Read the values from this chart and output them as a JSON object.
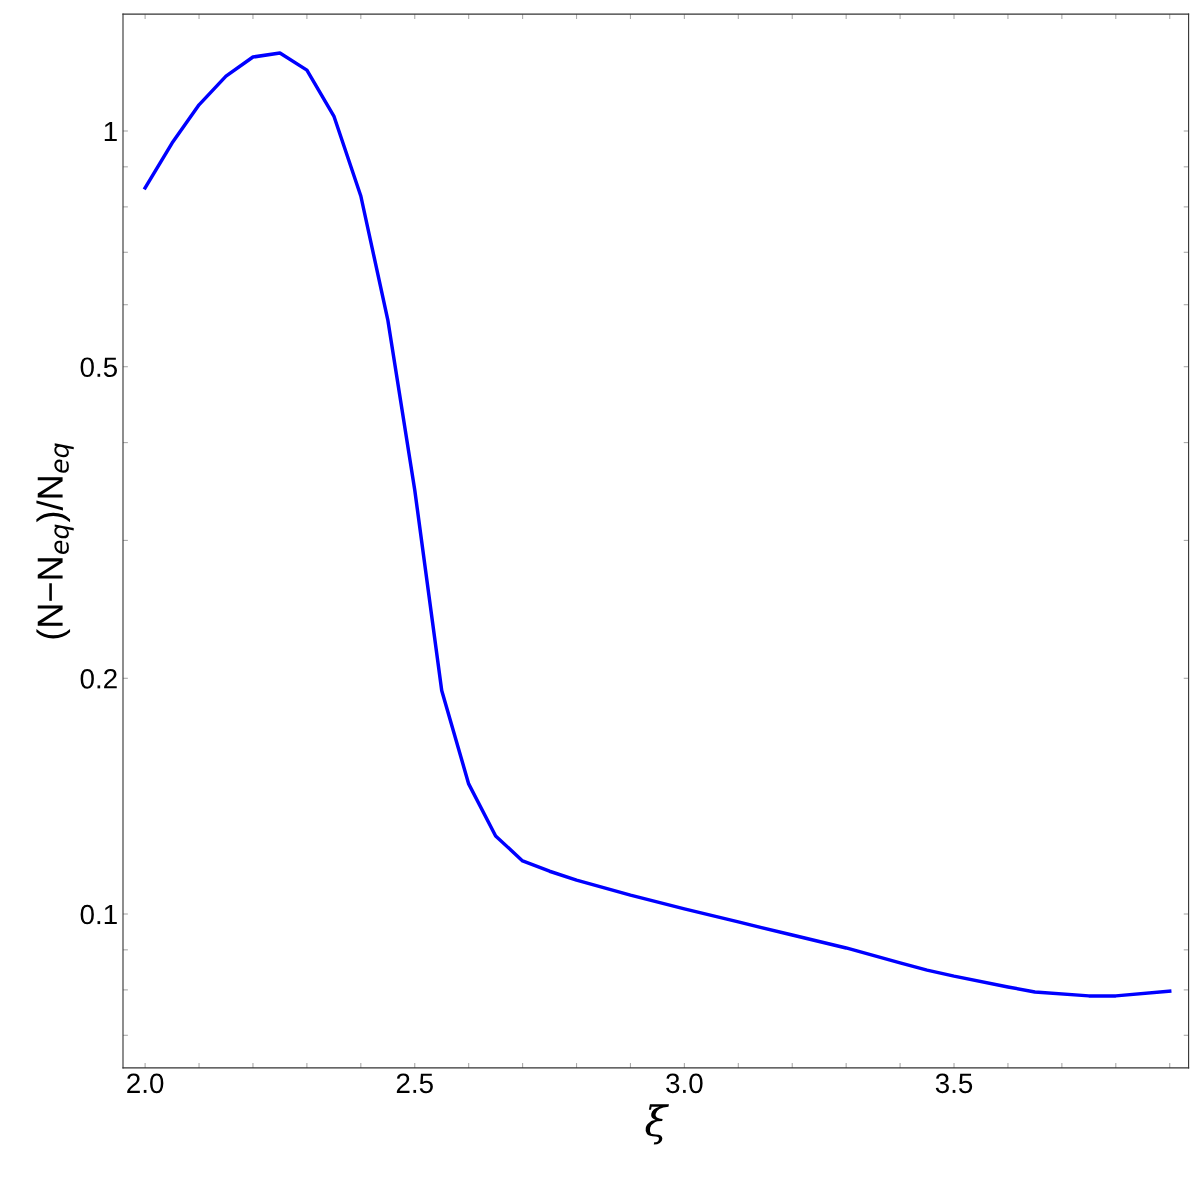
{
  "chart_data": {
    "type": "line",
    "xlabel": "ξ",
    "ylabel": "(N−N$_{eq}$)/N$_{eq}$",
    "log": "y",
    "grid": false,
    "marker": "none",
    "line_style": "solid",
    "xlim": [
      1.959,
      3.935
    ],
    "ylim": [
      0.0636,
      1.41
    ],
    "xticks": [
      {
        "value": 2.0,
        "label": "2.0"
      },
      {
        "value": 2.1,
        "label": null
      },
      {
        "value": 2.2,
        "label": null
      },
      {
        "value": 2.3,
        "label": null
      },
      {
        "value": 2.4,
        "label": null
      },
      {
        "value": 2.5,
        "label": "2.5"
      },
      {
        "value": 2.6,
        "label": null
      },
      {
        "value": 2.7,
        "label": null
      },
      {
        "value": 2.8,
        "label": null
      },
      {
        "value": 2.9,
        "label": null
      },
      {
        "value": 3.0,
        "label": "3.0"
      },
      {
        "value": 3.1,
        "label": null
      },
      {
        "value": 3.2,
        "label": null
      },
      {
        "value": 3.3,
        "label": null
      },
      {
        "value": 3.4,
        "label": null
      },
      {
        "value": 3.5,
        "label": "3.5"
      },
      {
        "value": 3.6,
        "label": null
      },
      {
        "value": 3.7,
        "label": null
      },
      {
        "value": 3.8,
        "label": null
      },
      {
        "value": 3.9,
        "label": null
      }
    ],
    "yticks": [
      {
        "value": 0.07,
        "label": null
      },
      {
        "value": 0.08,
        "label": null
      },
      {
        "value": 0.09,
        "label": null
      },
      0.1,
      {
        "value": 0.2,
        "label": "0.2"
      },
      {
        "value": 0.3,
        "label": null
      },
      {
        "value": 0.4,
        "label": null
      },
      {
        "value": 0.5,
        "label": "0.5"
      },
      {
        "value": 0.6,
        "label": null
      },
      {
        "value": 0.7,
        "label": null
      },
      {
        "value": 0.8,
        "label": null
      },
      {
        "value": 0.9,
        "label": null
      },
      1
    ],
    "series": [
      {
        "color": "#0000ff",
        "x": [
          2.0,
          2.05,
          2.1,
          2.15,
          2.2,
          2.25,
          2.3,
          2.35,
          2.4,
          2.45,
          2.5,
          2.55,
          2.6,
          2.65,
          2.7,
          2.75,
          2.8,
          2.9,
          3.0,
          3.1,
          3.2,
          3.3,
          3.4,
          3.45,
          3.5,
          3.6,
          3.65,
          3.75,
          3.8,
          3.9
        ],
        "values": [
          0.846,
          0.965,
          1.08,
          1.175,
          1.243,
          1.258,
          1.196,
          1.045,
          0.826,
          0.574,
          0.348,
          0.193,
          0.1466,
          0.1258,
          0.1169,
          0.1134,
          0.1105,
          0.1057,
          0.1015,
          0.0977,
          0.094,
          0.0905,
          0.0866,
          0.0848,
          0.0833,
          0.0807,
          0.0795,
          0.0786,
          0.0786,
          0.0797
        ]
      }
    ]
  }
}
